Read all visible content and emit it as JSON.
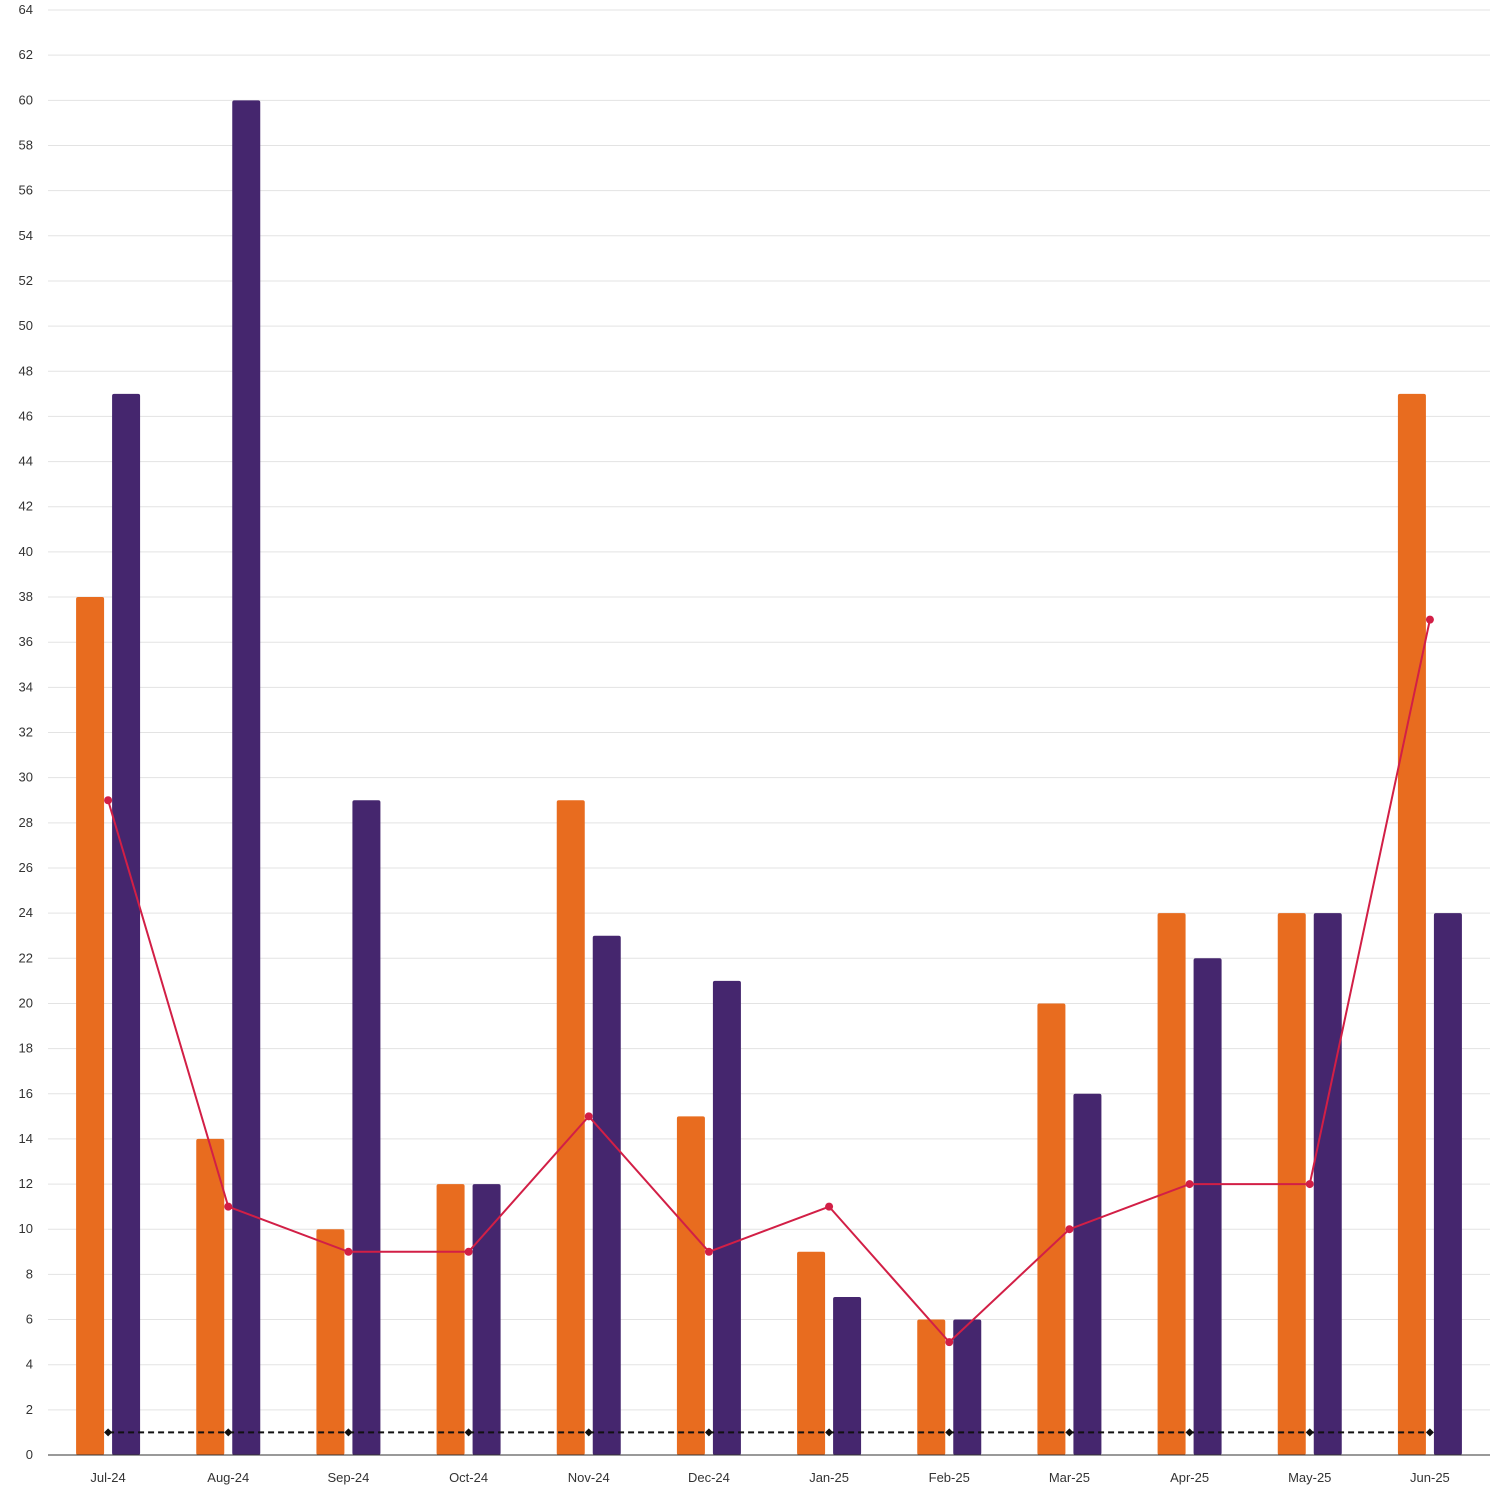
{
  "chart_data": {
    "type": "bar",
    "title": "",
    "xlabel": "",
    "ylabel": "",
    "categories": [
      "Jul-24",
      "Aug-24",
      "Sep-24",
      "Oct-24",
      "Nov-24",
      "Dec-24",
      "Jan-25",
      "Feb-25",
      "Mar-25",
      "Apr-25",
      "May-25",
      "Jun-25"
    ],
    "ylim": [
      0,
      64
    ],
    "y_ticks": [
      "0",
      "2",
      "4",
      "6",
      "8",
      "10",
      "12",
      "14",
      "16",
      "18",
      "20",
      "22",
      "24",
      "26",
      "28",
      "30",
      "32",
      "34",
      "36",
      "38",
      "40",
      "42",
      "44",
      "46",
      "48",
      "50",
      "52",
      "54",
      "56",
      "58",
      "60",
      "62",
      "64"
    ],
    "grid": true,
    "legend": "none",
    "series": [
      {
        "type": "bar",
        "color": "#e86c1f",
        "values": [
          38,
          14,
          10,
          12,
          29,
          15,
          9,
          6,
          20,
          24,
          24,
          47
        ]
      },
      {
        "type": "bar",
        "color": "#45266e",
        "values": [
          47,
          60,
          29,
          12,
          23,
          21,
          7,
          6,
          16,
          22,
          24,
          24
        ]
      },
      {
        "type": "line",
        "color": "#d21f46",
        "marker": "circle",
        "values": [
          29,
          11,
          9,
          9,
          15,
          9,
          11,
          5,
          10,
          12,
          12,
          37
        ]
      },
      {
        "type": "line",
        "color": "#111111",
        "marker": "diamond",
        "dashed": true,
        "values": [
          1,
          1,
          1,
          1,
          1,
          1,
          1,
          1,
          1,
          1,
          1,
          1
        ]
      }
    ]
  }
}
